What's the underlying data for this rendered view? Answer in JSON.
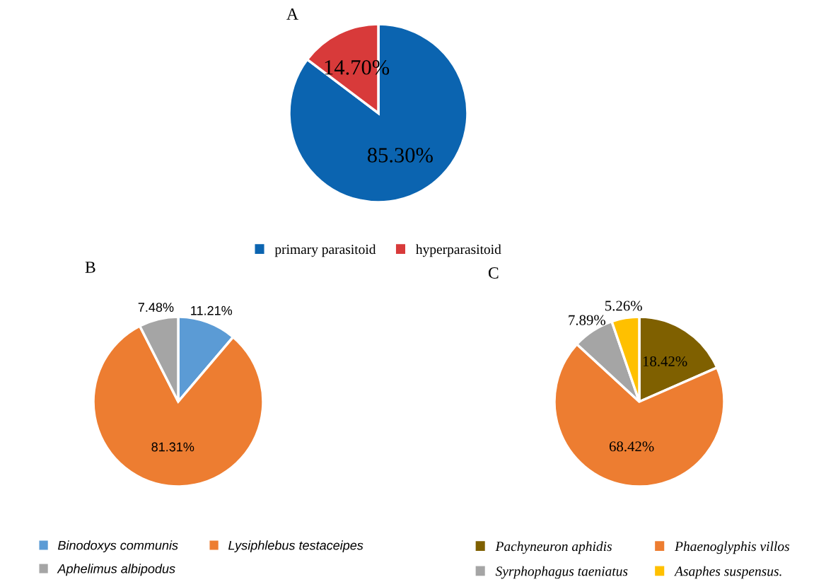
{
  "chart_data": [
    {
      "type": "pie",
      "title": "A",
      "categories": [
        "primary parasitoid",
        "hyperparasitoid"
      ],
      "values": [
        85.3,
        14.7
      ],
      "colors": [
        "#0b64b0",
        "#d83a3a"
      ],
      "value_labels": [
        "85.30%",
        "14.70%"
      ],
      "legend": "bottom"
    },
    {
      "type": "pie",
      "title": "B",
      "categories": [
        "Binodoxys communis",
        "Lysiphlebus testaceipes",
        "Aphelimus albipodus"
      ],
      "values": [
        11.21,
        81.31,
        7.48
      ],
      "colors": [
        "#5b9bd5",
        "#ed7d31",
        "#a5a5a5"
      ],
      "value_labels": [
        "11.21%",
        "81.31%",
        "7.48%"
      ],
      "legend": "bottom"
    },
    {
      "type": "pie",
      "title": "C",
      "categories": [
        "Pachyneuron aphidis",
        "Phaenoglyphis villos",
        "Syrphophagus taeniatus",
        "Asaphes suspensus."
      ],
      "values": [
        18.42,
        68.42,
        7.89,
        5.26
      ],
      "colors": [
        "#7f6000",
        "#ed7d31",
        "#a5a5a5",
        "#ffc000"
      ],
      "value_labels": [
        "18.42%",
        "68.42%",
        "7.89%",
        "5.26%"
      ],
      "legend": "bottom"
    }
  ]
}
